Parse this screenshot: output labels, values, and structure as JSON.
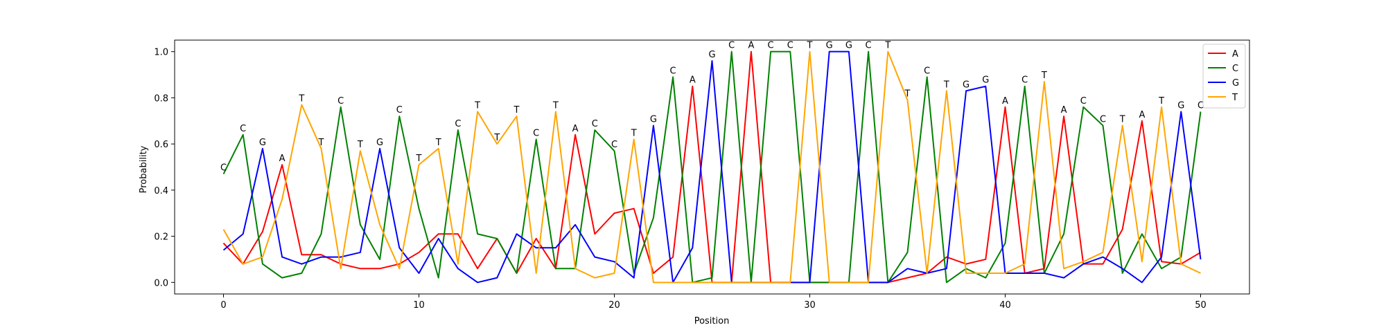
{
  "chart_data": {
    "type": "line",
    "title": "",
    "xlabel": "Position",
    "ylabel": "Probability",
    "xlim": [
      -2.5,
      52.5
    ],
    "ylim": [
      -0.05,
      1.05
    ],
    "xticks": [
      0,
      10,
      20,
      30,
      40,
      50
    ],
    "yticks": [
      0.0,
      0.2,
      0.4,
      0.6,
      0.8,
      1.0
    ],
    "grid": false,
    "legend_position": "top-right",
    "x": [
      0,
      1,
      2,
      3,
      4,
      5,
      6,
      7,
      8,
      9,
      10,
      11,
      12,
      13,
      14,
      15,
      16,
      17,
      18,
      19,
      20,
      21,
      22,
      23,
      24,
      25,
      26,
      27,
      28,
      29,
      30,
      31,
      32,
      33,
      34,
      35,
      36,
      37,
      38,
      39,
      40,
      41,
      42,
      43,
      44,
      45,
      46,
      47,
      48,
      49,
      50
    ],
    "series": [
      {
        "name": "A",
        "color": "#ff0000",
        "values": [
          0.17,
          0.08,
          0.22,
          0.51,
          0.12,
          0.12,
          0.08,
          0.06,
          0.06,
          0.08,
          0.13,
          0.21,
          0.21,
          0.06,
          0.19,
          0.04,
          0.19,
          0.06,
          0.64,
          0.21,
          0.3,
          0.32,
          0.04,
          0.11,
          0.85,
          0.0,
          0.0,
          1.0,
          0.0,
          0.0,
          0.0,
          0.0,
          0.0,
          0.0,
          0.0,
          0.02,
          0.04,
          0.11,
          0.08,
          0.1,
          0.76,
          0.04,
          0.06,
          0.72,
          0.08,
          0.08,
          0.23,
          0.7,
          0.09,
          0.08,
          0.13
        ]
      },
      {
        "name": "C",
        "color": "#008000",
        "values": [
          0.47,
          0.64,
          0.08,
          0.02,
          0.04,
          0.21,
          0.76,
          0.25,
          0.1,
          0.72,
          0.32,
          0.02,
          0.66,
          0.21,
          0.19,
          0.04,
          0.62,
          0.06,
          0.06,
          0.66,
          0.57,
          0.04,
          0.28,
          0.89,
          0.0,
          0.02,
          1.0,
          0.0,
          1.0,
          1.0,
          0.0,
          0.0,
          0.0,
          1.0,
          0.0,
          0.13,
          0.89,
          0.0,
          0.06,
          0.02,
          0.17,
          0.85,
          0.04,
          0.21,
          0.76,
          0.68,
          0.04,
          0.21,
          0.06,
          0.11,
          0.74
        ]
      },
      {
        "name": "G",
        "color": "#0000ff",
        "values": [
          0.14,
          0.21,
          0.58,
          0.11,
          0.08,
          0.11,
          0.11,
          0.13,
          0.58,
          0.15,
          0.04,
          0.19,
          0.06,
          0.0,
          0.02,
          0.21,
          0.15,
          0.15,
          0.25,
          0.11,
          0.09,
          0.02,
          0.68,
          0.0,
          0.15,
          0.96,
          0.0,
          0.0,
          0.0,
          0.0,
          0.0,
          1.0,
          1.0,
          0.0,
          0.0,
          0.06,
          0.04,
          0.06,
          0.83,
          0.85,
          0.04,
          0.04,
          0.04,
          0.02,
          0.08,
          0.11,
          0.06,
          0.0,
          0.11,
          0.74,
          0.1
        ]
      },
      {
        "name": "T",
        "color": "#ffa500",
        "values": [
          0.23,
          0.08,
          0.11,
          0.36,
          0.77,
          0.58,
          0.06,
          0.57,
          0.25,
          0.06,
          0.51,
          0.58,
          0.08,
          0.74,
          0.6,
          0.72,
          0.04,
          0.74,
          0.06,
          0.02,
          0.04,
          0.62,
          0.0,
          0.0,
          0.0,
          0.0,
          0.0,
          0.0,
          0.0,
          0.0,
          1.0,
          0.0,
          0.0,
          0.0,
          1.0,
          0.79,
          0.04,
          0.83,
          0.04,
          0.04,
          0.04,
          0.08,
          0.87,
          0.06,
          0.09,
          0.13,
          0.68,
          0.09,
          0.76,
          0.08,
          0.04
        ]
      }
    ],
    "annotations": [
      "C",
      "C",
      "G",
      "A",
      "T",
      "T",
      "C",
      "T",
      "G",
      "C",
      "T",
      "T",
      "C",
      "T",
      "T",
      "T",
      "C",
      "T",
      "A",
      "C",
      "C",
      "T",
      "G",
      "C",
      "A",
      "G",
      "C",
      "A",
      "C",
      "C",
      "T",
      "G",
      "G",
      "C",
      "T",
      "T",
      "C",
      "T",
      "G",
      "G",
      "A",
      "C",
      "T",
      "A",
      "C",
      "C",
      "T",
      "A",
      "T",
      "G",
      "C"
    ]
  }
}
